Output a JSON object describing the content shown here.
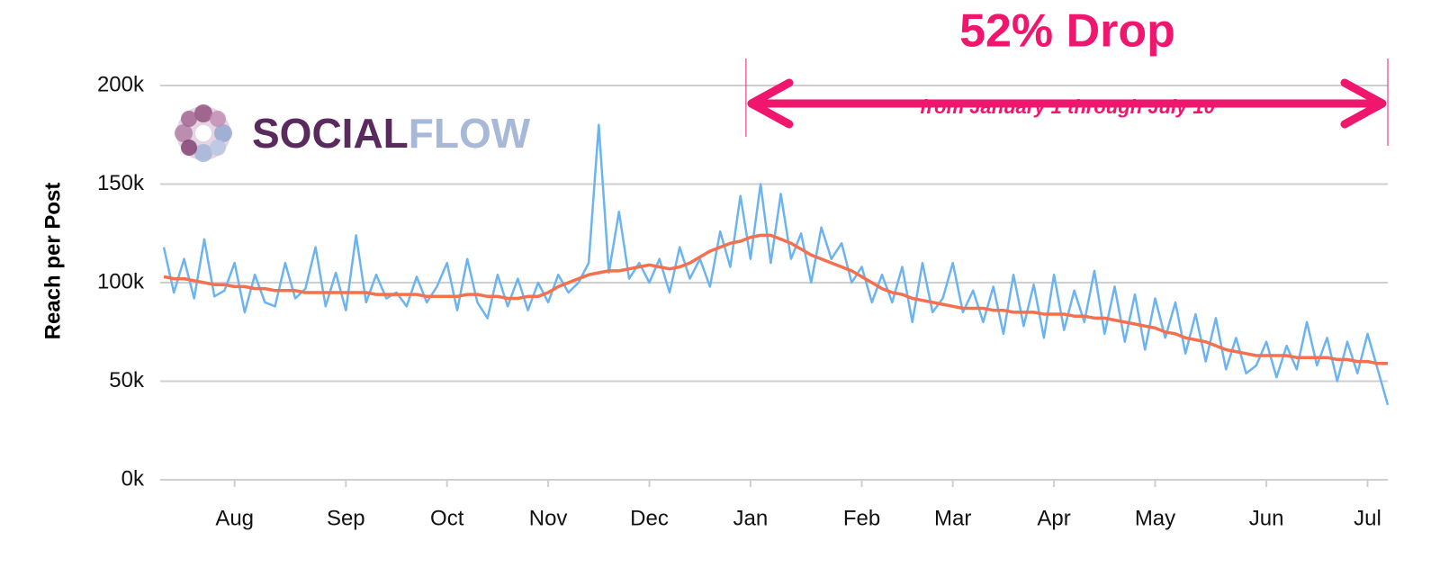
{
  "chart_data": {
    "type": "line",
    "title": "52% Drop",
    "subtitle": "from January 1 through July 10",
    "y_label": "Reach per Post",
    "logo": [
      "SOCIAL",
      "FLOW"
    ],
    "categories": [
      null,
      null,
      null,
      null,
      null,
      null,
      null,
      "Aug",
      null,
      null,
      null,
      null,
      null,
      null,
      null,
      null,
      null,
      null,
      "Sep",
      null,
      null,
      null,
      null,
      null,
      null,
      null,
      null,
      null,
      "Oct",
      null,
      null,
      null,
      null,
      null,
      null,
      null,
      null,
      null,
      "Nov",
      null,
      null,
      null,
      null,
      null,
      null,
      null,
      null,
      null,
      "Dec",
      null,
      null,
      null,
      null,
      null,
      null,
      null,
      null,
      null,
      "Jan",
      null,
      null,
      null,
      null,
      null,
      null,
      null,
      null,
      null,
      null,
      "Feb",
      null,
      null,
      null,
      null,
      null,
      null,
      null,
      null,
      "Mar",
      null,
      null,
      null,
      null,
      null,
      null,
      null,
      null,
      null,
      "Apr",
      null,
      null,
      null,
      null,
      null,
      null,
      null,
      null,
      null,
      "May",
      null,
      null,
      null,
      null,
      null,
      null,
      null,
      null,
      null,
      null,
      "Jun",
      null,
      null,
      null,
      null,
      null,
      null,
      null,
      null,
      null,
      "Jul",
      null,
      null
    ],
    "series": [
      {
        "color": "#6cb4f0",
        "values": [
          118000,
          95000,
          112000,
          92000,
          122000,
          93000,
          96000,
          110000,
          85000,
          104000,
          90000,
          88000,
          110000,
          92000,
          97000,
          118000,
          88000,
          105000,
          86000,
          124000,
          90000,
          104000,
          92000,
          95000,
          88000,
          103000,
          90000,
          98000,
          110000,
          86000,
          112000,
          90000,
          82000,
          104000,
          88000,
          102000,
          86000,
          100000,
          90000,
          104000,
          95000,
          100000,
          110000,
          180000,
          105000,
          136000,
          102000,
          110000,
          100000,
          112000,
          95000,
          118000,
          102000,
          112000,
          98000,
          126000,
          108000,
          144000,
          112000,
          150000,
          110000,
          145000,
          112000,
          125000,
          100000,
          128000,
          112000,
          120000,
          100000,
          108000,
          90000,
          104000,
          90000,
          108000,
          80000,
          110000,
          85000,
          92000,
          110000,
          85000,
          96000,
          80000,
          98000,
          74000,
          104000,
          78000,
          99000,
          72000,
          104000,
          76000,
          96000,
          80000,
          106000,
          74000,
          98000,
          70000,
          94000,
          66000,
          92000,
          72000,
          90000,
          64000,
          84000,
          60000,
          82000,
          56000,
          72000,
          54000,
          58000,
          70000,
          52000,
          68000,
          56000,
          80000,
          58000,
          72000,
          50000,
          70000,
          54000,
          74000,
          56000,
          38000
        ]
      },
      {
        "color": "#f4704e",
        "values": [
          103000,
          102000,
          102000,
          101000,
          100000,
          99000,
          99000,
          98000,
          98000,
          97000,
          97000,
          96000,
          96000,
          96000,
          95000,
          95000,
          95000,
          95000,
          95000,
          95000,
          95000,
          94000,
          94000,
          94000,
          94000,
          94000,
          93000,
          93000,
          93000,
          93000,
          94000,
          94000,
          93000,
          93000,
          92000,
          92000,
          93000,
          93000,
          95000,
          98000,
          100000,
          102000,
          104000,
          105000,
          106000,
          106000,
          107000,
          108000,
          109000,
          108000,
          107000,
          108000,
          110000,
          113000,
          116000,
          118000,
          120000,
          121000,
          123000,
          124000,
          124000,
          122000,
          120000,
          117000,
          114000,
          112000,
          110000,
          108000,
          106000,
          103000,
          100000,
          97000,
          95000,
          94000,
          92000,
          91000,
          90000,
          89000,
          88000,
          87000,
          87000,
          87000,
          86000,
          86000,
          85000,
          85000,
          85000,
          84000,
          84000,
          84000,
          83000,
          83000,
          82000,
          82000,
          81000,
          80000,
          79000,
          78000,
          77000,
          75000,
          74000,
          72000,
          71000,
          70000,
          68000,
          66000,
          65000,
          64000,
          63000,
          63000,
          63000,
          63000,
          62000,
          62000,
          62000,
          62000,
          61000,
          61000,
          60000,
          60000,
          59000,
          59000
        ]
      }
    ],
    "ylim": [
      0,
      200000
    ],
    "yticks": [
      {
        "value": 0,
        "label": "0k"
      },
      {
        "value": 50000,
        "label": "50k"
      },
      {
        "value": 100000,
        "label": "100k"
      },
      {
        "value": 150000,
        "label": "150k"
      },
      {
        "value": 200000,
        "label": "200k"
      }
    ],
    "grid": true,
    "annotation_color": "#f0166e"
  }
}
